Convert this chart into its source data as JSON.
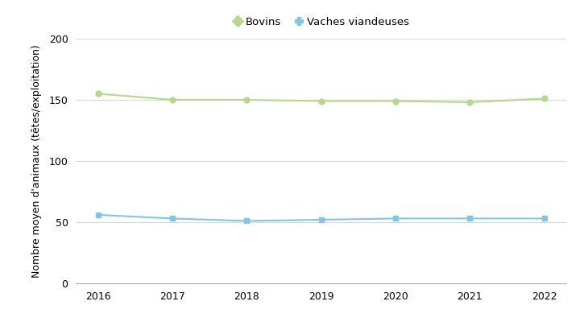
{
  "years": [
    2016,
    2017,
    2018,
    2019,
    2020,
    2021,
    2022
  ],
  "bovins": [
    155,
    150,
    150,
    149,
    149,
    148,
    151
  ],
  "vaches": [
    56,
    53,
    51,
    52,
    53,
    53,
    53
  ],
  "bovins_color": "#b5d98a",
  "vaches_color": "#7ec8e3",
  "bovins_label": "Bovins",
  "vaches_label": "Vaches viandeuses",
  "ylabel": "Nombre moyen d'animaux (têtes/exploitation)",
  "ylim": [
    0,
    200
  ],
  "yticks": [
    0,
    50,
    100,
    150,
    200
  ],
  "grid_color": "#d8d8d8",
  "background_color": "#ffffff"
}
